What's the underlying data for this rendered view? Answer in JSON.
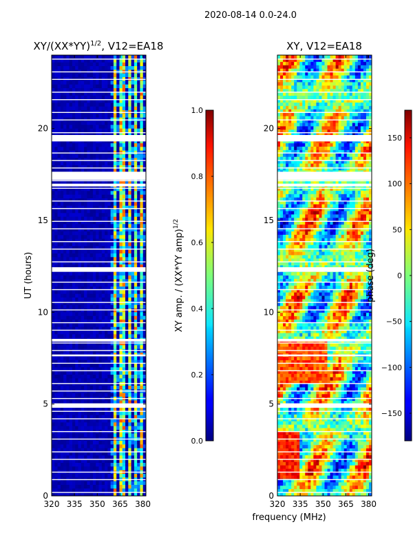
{
  "chart_data": [
    {
      "type": "heatmap",
      "title": "XY/(XX*YY)^1/2, V12=EA18",
      "title_main": "XY/(XX*YY)",
      "title_exp": "1/2",
      "title_tail": ", V12=EA18",
      "xlabel": "",
      "ylabel": "UT (hours)",
      "xlim": [
        320,
        382
      ],
      "ylim": [
        0,
        24
      ],
      "xticks": [
        320,
        335,
        350,
        365,
        380
      ],
      "yticks": [
        0,
        5,
        10,
        15,
        20
      ],
      "colorbar": {
        "label": "XY amp. / (XX*YY amp)^1/2",
        "label_main": "XY amp. / (XX*YY amp)",
        "label_exp": "1/2",
        "range": [
          0.0,
          1.0
        ],
        "ticks": [
          "0.0",
          "0.2",
          "0.4",
          "0.6",
          "0.8",
          "1.0"
        ],
        "tick_values": [
          0.0,
          0.2,
          0.4,
          0.6,
          0.8,
          1.0
        ]
      },
      "data_gaps_ut": [
        [
          19.3,
          19.65
        ],
        [
          17.2,
          17.65
        ],
        [
          16.85,
          17.0
        ],
        [
          12.2,
          12.45
        ],
        [
          8.4,
          8.55
        ],
        [
          4.8,
          5.0
        ],
        [
          7.6,
          7.7
        ]
      ],
      "bright_channel_bands_mhz": [
        [
          360.5,
          363.5
        ],
        [
          365.5,
          367.5
        ],
        [
          370,
          372
        ],
        [
          374,
          376
        ],
        [
          378.5,
          380.5
        ]
      ]
    },
    {
      "type": "heatmap",
      "title": "XY, V12=EA18",
      "xlabel": "frequency (MHz)",
      "ylabel": "",
      "xlim": [
        320,
        382
      ],
      "ylim": [
        0,
        24
      ],
      "xticks": [
        320,
        335,
        350,
        365,
        380
      ],
      "yticks": [
        0,
        5,
        10,
        15,
        20
      ],
      "colorbar": {
        "label": "phase (deg)",
        "range": [
          -180,
          180
        ],
        "ticks": [
          "−150",
          "−100",
          "−50",
          "0",
          "50",
          "100",
          "150"
        ],
        "tick_values": [
          -150,
          -100,
          -50,
          0,
          50,
          100,
          150
        ]
      },
      "data_gaps_ut": [
        [
          19.3,
          19.65
        ],
        [
          17.2,
          17.65
        ],
        [
          16.85,
          17.0
        ],
        [
          12.2,
          12.45
        ],
        [
          8.4,
          8.55
        ],
        [
          4.8,
          5.0
        ],
        [
          7.6,
          7.7
        ]
      ]
    }
  ],
  "figure": {
    "suptitle": "2020-08-14 0.0-24.0"
  }
}
